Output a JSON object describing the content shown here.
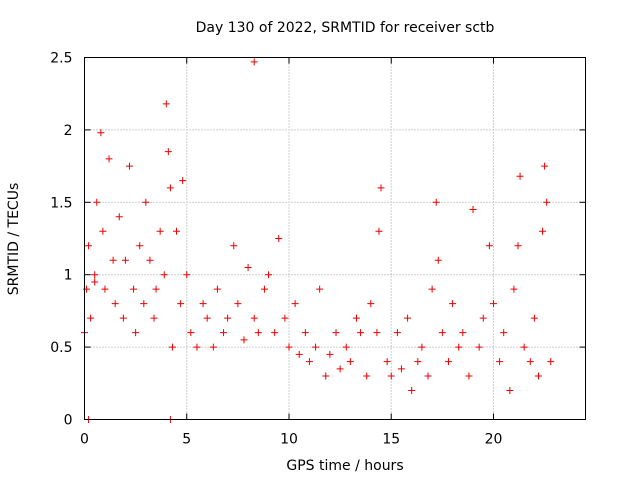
{
  "chart_data": {
    "type": "scatter",
    "title": "Day 130 of 2022, SRMTID for receiver sctb",
    "xlabel": "GPS time / hours",
    "ylabel": "SRMTID / TECUs",
    "xlim": [
      0,
      24.5
    ],
    "ylim": [
      0,
      2.5
    ],
    "xticks": [
      0,
      5,
      10,
      15,
      20
    ],
    "yticks": [
      0,
      0.5,
      1,
      1.5,
      2,
      2.5
    ],
    "xtick_labels": [
      "0",
      "5",
      "10",
      "15",
      "20"
    ],
    "ytick_labels": [
      "0",
      "0.5",
      "1",
      "1.5",
      "2",
      "2.5"
    ],
    "grid": true,
    "marker": "+",
    "color": "#ee0000",
    "sampling": "approximate, every ~0.25 h (dense original has thousands of points)",
    "series": [
      {
        "name": "SRMTID",
        "x": [
          0.0,
          0.1,
          0.2,
          0.3,
          0.5,
          0.6,
          0.8,
          0.9,
          1.0,
          1.2,
          1.4,
          1.5,
          1.7,
          1.9,
          2.0,
          2.2,
          2.4,
          2.5,
          2.7,
          2.9,
          3.0,
          3.2,
          3.4,
          3.5,
          3.7,
          3.9,
          4.0,
          4.1,
          4.2,
          4.3,
          4.5,
          4.7,
          4.8,
          5.0,
          5.2,
          5.5,
          5.8,
          6.0,
          6.3,
          6.5,
          6.8,
          7.0,
          7.3,
          7.5,
          7.8,
          8.0,
          8.3,
          8.5,
          8.8,
          9.0,
          9.3,
          9.5,
          9.8,
          10.0,
          10.3,
          10.5,
          10.8,
          11.0,
          11.3,
          11.5,
          11.8,
          12.0,
          12.3,
          12.5,
          12.8,
          13.0,
          13.3,
          13.5,
          13.8,
          14.0,
          14.3,
          14.4,
          14.5,
          14.8,
          15.0,
          15.3,
          15.5,
          15.8,
          16.0,
          16.3,
          16.5,
          16.8,
          17.0,
          17.2,
          17.3,
          17.5,
          17.8,
          18.0,
          18.3,
          18.5,
          18.8,
          19.0,
          19.3,
          19.5,
          19.8,
          20.0,
          20.3,
          20.5,
          20.8,
          21.0,
          21.2,
          21.3,
          21.5,
          21.8,
          22.0,
          22.2,
          22.4,
          22.5,
          22.6,
          22.8
        ],
        "y": [
          0.6,
          0.9,
          1.2,
          0.7,
          1.0,
          1.5,
          1.98,
          1.3,
          0.9,
          1.8,
          1.1,
          0.8,
          1.4,
          0.7,
          1.1,
          1.75,
          0.9,
          0.6,
          1.2,
          0.8,
          1.5,
          1.1,
          0.7,
          0.9,
          1.3,
          1.0,
          2.18,
          1.85,
          1.6,
          0.5,
          1.3,
          0.8,
          1.65,
          1.0,
          0.6,
          0.5,
          0.8,
          0.7,
          0.5,
          0.9,
          0.6,
          0.7,
          1.2,
          0.8,
          0.55,
          1.05,
          0.7,
          0.6,
          0.9,
          1.0,
          0.6,
          1.25,
          0.7,
          0.5,
          0.8,
          0.45,
          0.6,
          0.4,
          0.5,
          0.9,
          0.3,
          0.45,
          0.6,
          0.35,
          0.5,
          0.4,
          0.7,
          0.6,
          0.3,
          0.8,
          0.6,
          1.3,
          1.6,
          0.4,
          0.3,
          0.6,
          0.35,
          0.7,
          0.2,
          0.4,
          0.5,
          0.3,
          0.9,
          1.5,
          1.1,
          0.6,
          0.4,
          0.8,
          0.5,
          0.6,
          0.3,
          1.45,
          0.5,
          0.7,
          1.2,
          0.8,
          0.4,
          0.6,
          0.2,
          0.9,
          1.2,
          1.68,
          0.5,
          0.4,
          0.7,
          0.3,
          1.3,
          1.75,
          1.5,
          0.4
        ]
      }
    ],
    "outliers": [
      {
        "x": 8.3,
        "y": 2.47
      },
      {
        "x": 0.5,
        "y": 0.95
      },
      {
        "x": 0.2,
        "y": 0.0
      },
      {
        "x": 4.2,
        "y": 0.0
      }
    ]
  }
}
